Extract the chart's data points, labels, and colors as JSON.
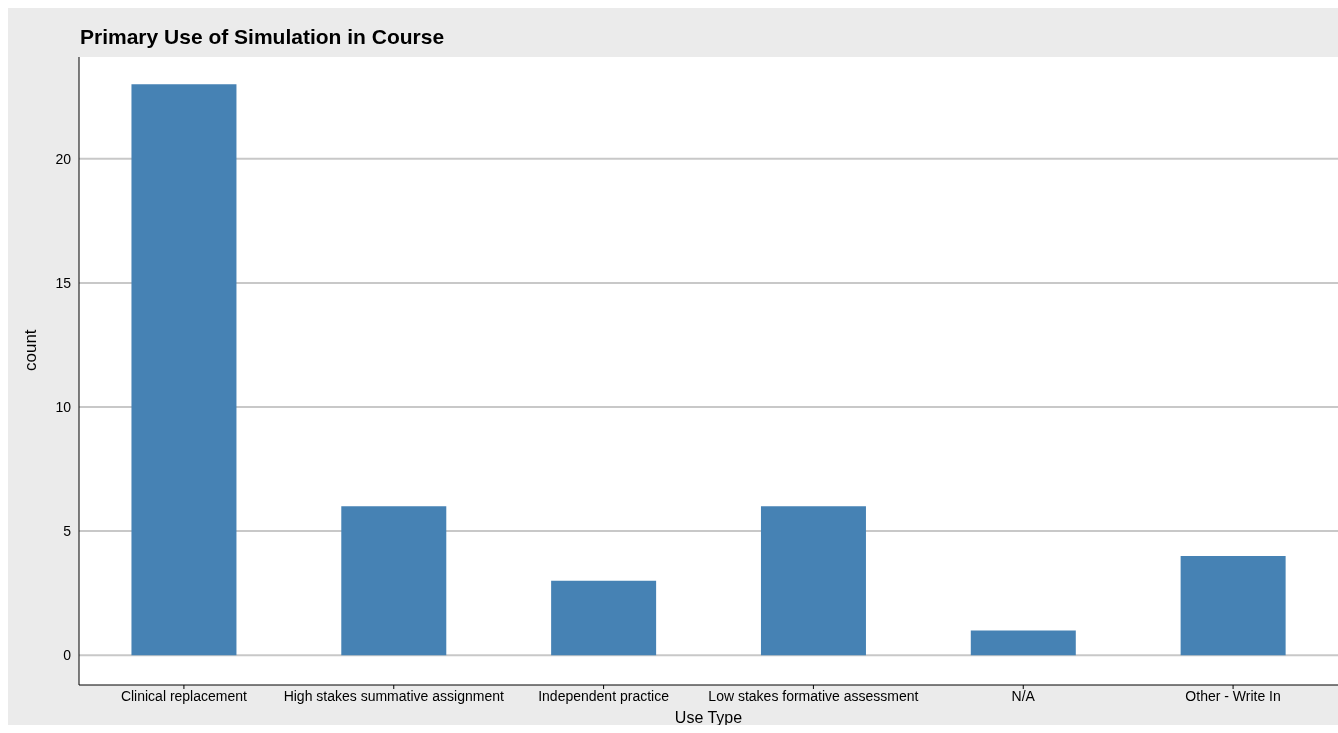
{
  "chart_data": {
    "type": "bar",
    "title": "Primary Use of Simulation in Course",
    "xlabel": "Use Type",
    "ylabel": "count",
    "categories": [
      "Clinical replacement",
      "High stakes summative assignment",
      "Independent practice",
      "Low stakes formative assessment",
      "N/A",
      "Other - Write In"
    ],
    "values": [
      23,
      6,
      3,
      6,
      1,
      4
    ],
    "color": "#4682b4",
    "ylim": [
      -1.2,
      24.1
    ],
    "yticks": [
      0,
      5,
      10,
      15,
      20
    ],
    "grid": "y"
  }
}
